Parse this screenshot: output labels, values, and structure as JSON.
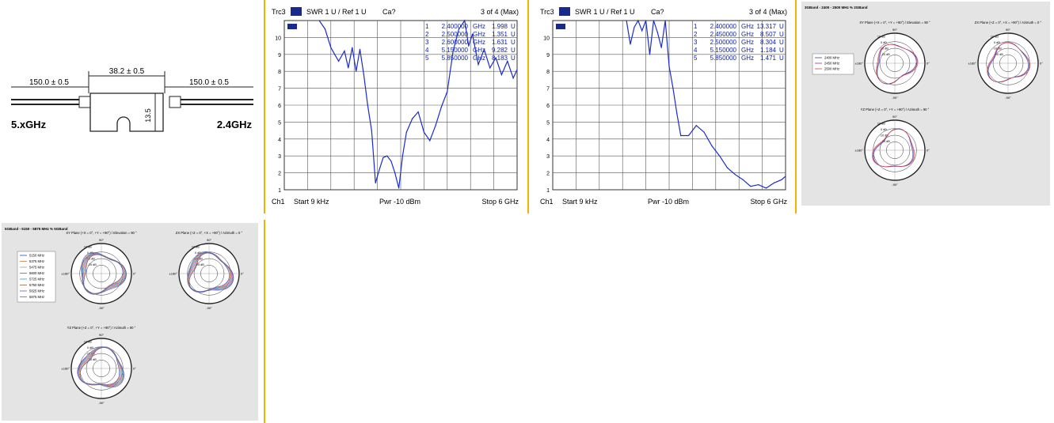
{
  "drawing": {
    "dim_left": "150.0 ± 0.5",
    "dim_center": "38.2 ± 0.5",
    "dim_right": "150.0 ± 0.5",
    "dim_height": "13.5",
    "label_left": "5.xGHz",
    "label_right": "2.4GHz"
  },
  "chart_data": [
    {
      "type": "line",
      "header": {
        "trace": "Trc3",
        "meas": "SWR  1 U /  Ref 1 U",
        "cal": "Ca?",
        "page": "3 of 4 (Max)"
      },
      "footer": {
        "channel": "Ch1",
        "start": "Start  9 kHz",
        "power": "Pwr  -10 dBm",
        "stop": "Stop  6 GHz"
      },
      "yticks": [
        "10",
        "9",
        "8",
        "7",
        "6",
        "5",
        "4",
        "3",
        "2",
        "1"
      ],
      "ylim": [
        1,
        11
      ],
      "xlim": [
        0,
        6
      ],
      "markers": [
        {
          "n": "1",
          "freq": "2.400000",
          "unit": "GHz",
          "value": "1.998",
          "vunit": "U"
        },
        {
          "n": "2",
          "freq": "2.500000",
          "unit": "GHz",
          "value": "1.351",
          "vunit": "U"
        },
        {
          "n": "3",
          "freq": "2.600000",
          "unit": "GHz",
          "value": "1.631",
          "vunit": "U"
        },
        {
          "n": "4",
          "freq": "5.150000",
          "unit": "GHz",
          "value": "9.282",
          "vunit": "U"
        },
        {
          "n": "5",
          "freq": "5.850000",
          "unit": "GHz",
          "value": "8.183",
          "vunit": "U"
        }
      ],
      "trace_color": "#1a2ccc",
      "x": [
        0.9,
        1.05,
        1.2,
        1.4,
        1.55,
        1.65,
        1.75,
        1.85,
        1.95,
        2.05,
        2.15,
        2.25,
        2.35,
        2.45,
        2.55,
        2.65,
        2.75,
        2.85,
        2.95,
        3.05,
        3.15,
        3.3,
        3.45,
        3.6,
        3.75,
        3.9,
        4.05,
        4.2,
        4.35,
        4.5,
        4.65,
        4.75,
        4.85,
        5.0,
        5.15,
        5.3,
        5.45,
        5.6,
        5.75,
        5.9,
        6.0
      ],
      "y": [
        11,
        10.5,
        9.4,
        8.6,
        9.2,
        8.2,
        9.4,
        8.0,
        9.3,
        7.8,
        6.0,
        4.5,
        1.4,
        2.2,
        2.9,
        3.0,
        2.7,
        2.0,
        1.1,
        3.0,
        4.4,
        5.2,
        5.6,
        4.4,
        3.9,
        4.8,
        5.9,
        6.8,
        9.2,
        10.5,
        11,
        9.5,
        10.2,
        8.4,
        9.3,
        8.2,
        8.8,
        7.8,
        8.6,
        7.6,
        8.1
      ]
    },
    {
      "type": "line",
      "header": {
        "trace": "Trc3",
        "meas": "SWR  1 U /  Ref 1 U",
        "cal": "Ca?",
        "page": "3 of 4 (Max)"
      },
      "footer": {
        "channel": "Ch1",
        "start": "Start  9 kHz",
        "power": "Pwr  -10 dBm",
        "stop": "Stop  6 GHz"
      },
      "yticks": [
        "10",
        "9",
        "8",
        "7",
        "6",
        "5",
        "4",
        "3",
        "2",
        "1"
      ],
      "ylim": [
        1,
        11
      ],
      "xlim": [
        0,
        6
      ],
      "markers": [
        {
          "n": "1",
          "freq": "2.400000",
          "unit": "GHz",
          "value": "13.317",
          "vunit": "U"
        },
        {
          "n": "2",
          "freq": "2.450000",
          "unit": "GHz",
          "value": "8.507",
          "vunit": "U"
        },
        {
          "n": "3",
          "freq": "2.500000",
          "unit": "GHz",
          "value": "8.304",
          "vunit": "U"
        },
        {
          "n": "4",
          "freq": "5.150000",
          "unit": "GHz",
          "value": "1.184",
          "vunit": "U"
        },
        {
          "n": "5",
          "freq": "5.850000",
          "unit": "GHz",
          "value": "1.471",
          "vunit": "U"
        }
      ],
      "trace_color": "#1a2ccc",
      "x": [
        1.9,
        2.0,
        2.1,
        2.2,
        2.3,
        2.4,
        2.5,
        2.6,
        2.7,
        2.8,
        2.9,
        3.0,
        3.1,
        3.2,
        3.3,
        3.5,
        3.7,
        3.9,
        4.1,
        4.3,
        4.5,
        4.7,
        4.9,
        5.1,
        5.3,
        5.5,
        5.7,
        5.9,
        6.0
      ],
      "y": [
        11,
        9.6,
        10.6,
        11,
        10.4,
        11,
        9.0,
        11,
        10.3,
        9.4,
        11,
        8.3,
        7.0,
        5.5,
        4.2,
        4.2,
        4.8,
        4.4,
        3.6,
        3.0,
        2.3,
        1.9,
        1.6,
        1.2,
        1.3,
        1.1,
        1.4,
        1.6,
        1.8
      ]
    },
    {
      "type": "polar",
      "title": "3GBand - 2400 - 2500 MHz % 2GBand",
      "legend": [
        "2400 MHz",
        "2450 MHz",
        "2500 MHz"
      ],
      "legend_colors": [
        "#3344aa",
        "#993399",
        "#cc4444"
      ],
      "plots": [
        {
          "title": "XY Plane (+X = 0°, +Y = +90°) / Elevation = 90 °"
        },
        {
          "title": "ZX Plane (+Z = 0°, +X = +90°) / Azimuth = 0 °"
        },
        {
          "title": "YZ Plane (+Z = 0°, +Y = +90°) / Azimuth = 90 °"
        }
      ],
      "rings": [
        "10 dB",
        "0 dB",
        "-10 dB",
        "-20 dB"
      ],
      "angles": {
        "top": "90°",
        "bottom": "-90°",
        "left": "±180°",
        "right": "0°"
      }
    },
    {
      "type": "polar",
      "title": "5GBand - 5150 - 5875 MHz % 5GBand",
      "legend": [
        "5150 MHz",
        "5375 MHz",
        "5475 MHz",
        "5600 MHz",
        "5725 MHz",
        "5750 MHz",
        "5825 MHz",
        "5875 MHz"
      ],
      "legend_colors": [
        "#3344aa",
        "#cc7733",
        "#999999",
        "#cc3399",
        "#3399cc",
        "#996633",
        "#666699",
        "#5566cc"
      ],
      "plots": [
        {
          "title": "XY Plane (+X = 0°, +Y = +90°) / Elevation = 90 °"
        },
        {
          "title": "ZX Plane (+Z = 0°, +X = +90°) / Azimuth = 0 °"
        },
        {
          "title": "YZ Plane (+Z = 0°, +Y = +90°) / Azimuth = 90 °"
        }
      ],
      "rings": [
        "10 dB",
        "0 dB",
        "-10 dB",
        "-20 dB"
      ],
      "angles": {
        "top": "90°",
        "bottom": "-90°",
        "left": "±180°",
        "right": "0°"
      }
    }
  ]
}
